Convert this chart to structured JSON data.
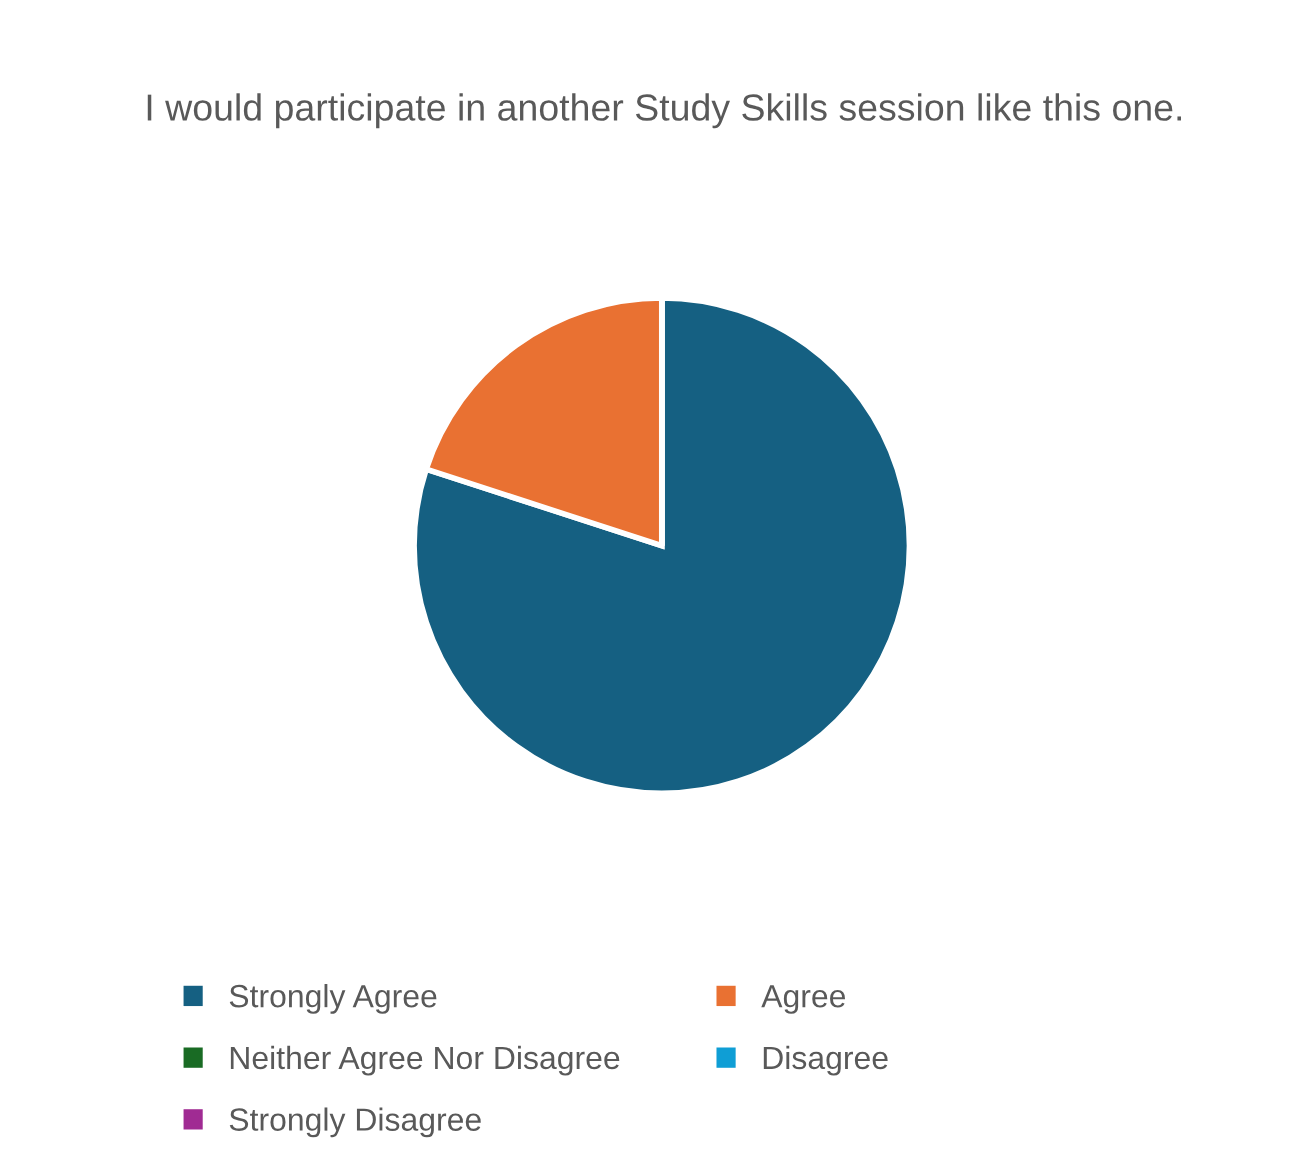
{
  "chart_data": {
    "type": "pie",
    "title": "I would participate in another Study Skills session like this one.",
    "categories": [
      "Strongly Agree",
      "Agree",
      "Neither Agree Nor Disagree",
      "Disagree",
      "Strongly Disagree"
    ],
    "values": [
      80,
      20,
      0,
      0,
      0
    ],
    "colors": [
      "#156082",
      "#e97132",
      "#196b24",
      "#0f9ed5",
      "#a02b93"
    ],
    "legend": "bottom"
  }
}
